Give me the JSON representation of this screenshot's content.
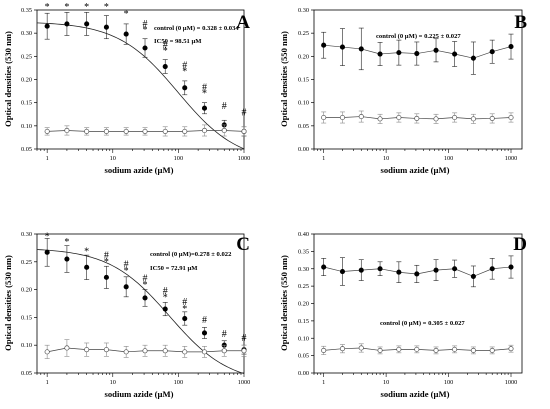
{
  "chart_data": [
    {
      "type": "scatter",
      "panel": "A",
      "xlabel": "sodium azide (µM)",
      "ylabel": "Optical densities (530 nm)",
      "x_scale": "log",
      "xlim": [
        0.7,
        1000
      ],
      "ylim": [
        0.05,
        0.35
      ],
      "xticks": [
        "1",
        "10",
        "100",
        "1000"
      ],
      "yticks": [
        "0.05",
        "0.10",
        "0.15",
        "0.20",
        "0.25",
        "0.30",
        "0.35"
      ],
      "annotations": [
        "control (0 µM) = 0.328 ± 0.034",
        "IC50 = 98.51 µM"
      ],
      "x": [
        1,
        2,
        4,
        8,
        16,
        31,
        63,
        125,
        250,
        500,
        1000
      ],
      "series": [
        {
          "marker": "filled",
          "values": [
            0.315,
            0.32,
            0.32,
            0.313,
            0.298,
            0.268,
            0.228,
            0.182,
            0.138,
            0.102,
            0.088
          ],
          "errors": [
            0.028,
            0.025,
            0.025,
            0.025,
            0.022,
            0.02,
            0.015,
            0.015,
            0.012,
            0.01,
            0.01
          ]
        },
        {
          "marker": "open",
          "values": [
            0.088,
            0.09,
            0.088,
            0.088,
            0.088,
            0.088,
            0.088,
            0.088,
            0.09,
            0.09,
            0.088
          ],
          "errors": [
            0.008,
            0.01,
            0.008,
            0.008,
            0.008,
            0.008,
            0.01,
            0.01,
            0.012,
            0.012,
            0.01
          ]
        }
      ],
      "fit_curve": {
        "top": 0.325,
        "ic50": 98.51,
        "bottom": 0.02,
        "hill": 0.95
      },
      "significance": [
        {
          "x": 1,
          "y": 0.35,
          "symbol": "*"
        },
        {
          "x": 2,
          "y": 0.35,
          "symbol": "*"
        },
        {
          "x": 4,
          "y": 0.35,
          "symbol": "*"
        },
        {
          "x": 8,
          "y": 0.35,
          "symbol": "*"
        },
        {
          "x": 16,
          "y": 0.335,
          "symbol": "*"
        },
        {
          "x": 31,
          "y": 0.313,
          "symbol": "#"
        },
        {
          "x": 31,
          "y": 0.3,
          "symbol": "*"
        },
        {
          "x": 63,
          "y": 0.268,
          "symbol": "#"
        },
        {
          "x": 63,
          "y": 0.255,
          "symbol": "*"
        },
        {
          "x": 125,
          "y": 0.224,
          "symbol": "#"
        },
        {
          "x": 125,
          "y": 0.211,
          "symbol": "*"
        },
        {
          "x": 250,
          "y": 0.176,
          "symbol": "#"
        },
        {
          "x": 250,
          "y": 0.163,
          "symbol": "*"
        },
        {
          "x": 500,
          "y": 0.136,
          "symbol": "#"
        },
        {
          "x": 1000,
          "y": 0.122,
          "symbol": "#"
        }
      ]
    },
    {
      "type": "scatter",
      "panel": "B",
      "xlabel": "sodium azide (µM)",
      "ylabel": "Optical densities (550 nm)",
      "x_scale": "log",
      "xlim": [
        0.7,
        1500
      ],
      "ylim": [
        0.0,
        0.3
      ],
      "xticks": [
        "1",
        "10",
        "100",
        "1000"
      ],
      "yticks": [
        "0.00",
        "0.05",
        "0.10",
        "0.15",
        "0.20",
        "0.25",
        "0.30"
      ],
      "annotations": [
        "control (0 µM) = 0.225 ± 0.027"
      ],
      "x": [
        1,
        2,
        4,
        8,
        16,
        31,
        63,
        125,
        250,
        500,
        1000
      ],
      "series": [
        {
          "marker": "filled",
          "values": [
            0.224,
            0.22,
            0.216,
            0.205,
            0.208,
            0.206,
            0.213,
            0.205,
            0.196,
            0.21,
            0.221
          ],
          "errors": [
            0.028,
            0.04,
            0.045,
            0.025,
            0.027,
            0.025,
            0.025,
            0.027,
            0.035,
            0.025,
            0.027
          ]
        },
        {
          "marker": "open",
          "values": [
            0.068,
            0.068,
            0.07,
            0.065,
            0.068,
            0.066,
            0.065,
            0.068,
            0.065,
            0.066,
            0.068
          ],
          "errors": [
            0.012,
            0.012,
            0.012,
            0.01,
            0.01,
            0.01,
            0.01,
            0.01,
            0.01,
            0.01,
            0.01
          ]
        }
      ],
      "significance": []
    },
    {
      "type": "scatter",
      "panel": "C",
      "xlabel": "sodium azide (µM)",
      "ylabel": "Optical densities (530 nm)",
      "x_scale": "log",
      "xlim": [
        0.7,
        1000
      ],
      "ylim": [
        0.05,
        0.3
      ],
      "xticks": [
        "1",
        "10",
        "100",
        "1000"
      ],
      "yticks": [
        "0.05",
        "0.10",
        "0.15",
        "0.20",
        "0.25",
        "0.30"
      ],
      "annotations": [
        "control (0 µM)=0.278 ± 0.022",
        "IC50 = 72.91 µM"
      ],
      "x": [
        1,
        2,
        4,
        8,
        16,
        31,
        63,
        125,
        250,
        500,
        1000
      ],
      "series": [
        {
          "marker": "filled",
          "values": [
            0.267,
            0.255,
            0.24,
            0.222,
            0.205,
            0.185,
            0.165,
            0.148,
            0.122,
            0.1,
            0.092
          ],
          "errors": [
            0.025,
            0.024,
            0.022,
            0.02,
            0.018,
            0.015,
            0.012,
            0.012,
            0.01,
            0.008,
            0.008
          ]
        },
        {
          "marker": "open",
          "values": [
            0.088,
            0.095,
            0.092,
            0.092,
            0.088,
            0.09,
            0.09,
            0.088,
            0.088,
            0.09,
            0.09
          ],
          "errors": [
            0.012,
            0.015,
            0.012,
            0.012,
            0.01,
            0.01,
            0.01,
            0.01,
            0.01,
            0.01,
            0.01
          ]
        }
      ],
      "fit_curve": {
        "top": 0.275,
        "ic50": 72.91,
        "bottom": 0.03,
        "hill": 0.95
      },
      "significance": [
        {
          "x": 1,
          "y": 0.29,
          "symbol": "*"
        },
        {
          "x": 2,
          "y": 0.28,
          "symbol": "*"
        },
        {
          "x": 4,
          "y": 0.263,
          "symbol": "*"
        },
        {
          "x": 8,
          "y": 0.256,
          "symbol": "#"
        },
        {
          "x": 8,
          "y": 0.244,
          "symbol": "*"
        },
        {
          "x": 16,
          "y": 0.24,
          "symbol": "#"
        },
        {
          "x": 16,
          "y": 0.228,
          "symbol": "*"
        },
        {
          "x": 31,
          "y": 0.215,
          "symbol": "#"
        },
        {
          "x": 31,
          "y": 0.203,
          "symbol": "*"
        },
        {
          "x": 63,
          "y": 0.192,
          "symbol": "#"
        },
        {
          "x": 63,
          "y": 0.18,
          "symbol": "*"
        },
        {
          "x": 125,
          "y": 0.172,
          "symbol": "#"
        },
        {
          "x": 125,
          "y": 0.16,
          "symbol": "*"
        },
        {
          "x": 250,
          "y": 0.14,
          "symbol": "#"
        },
        {
          "x": 500,
          "y": 0.115,
          "symbol": "#"
        },
        {
          "x": 1000,
          "y": 0.108,
          "symbol": "#"
        }
      ]
    },
    {
      "type": "scatter",
      "panel": "D",
      "xlabel": "sodium azide (µM)",
      "ylabel": "Optical densities (550 nm)",
      "x_scale": "log",
      "xlim": [
        0.7,
        1500
      ],
      "ylim": [
        0.0,
        0.4
      ],
      "xticks": [
        "1",
        "10",
        "100",
        "1000"
      ],
      "yticks": [
        "0.00",
        "0.05",
        "0.10",
        "0.15",
        "0.20",
        "0.25",
        "0.30",
        "0.35",
        "0.40"
      ],
      "annotations": [
        "control (0 µM) = 0.305 ± 0.027"
      ],
      "x": [
        1,
        2,
        4,
        8,
        16,
        31,
        63,
        125,
        250,
        500,
        1000
      ],
      "series": [
        {
          "marker": "filled",
          "values": [
            0.305,
            0.292,
            0.296,
            0.3,
            0.29,
            0.285,
            0.296,
            0.3,
            0.278,
            0.3,
            0.305
          ],
          "errors": [
            0.025,
            0.04,
            0.03,
            0.02,
            0.03,
            0.025,
            0.03,
            0.025,
            0.03,
            0.03,
            0.032
          ]
        },
        {
          "marker": "open",
          "values": [
            0.065,
            0.07,
            0.072,
            0.065,
            0.068,
            0.068,
            0.065,
            0.068,
            0.065,
            0.065,
            0.07
          ],
          "errors": [
            0.012,
            0.012,
            0.012,
            0.01,
            0.01,
            0.01,
            0.01,
            0.01,
            0.01,
            0.01,
            0.01
          ]
        }
      ],
      "significance": []
    }
  ]
}
